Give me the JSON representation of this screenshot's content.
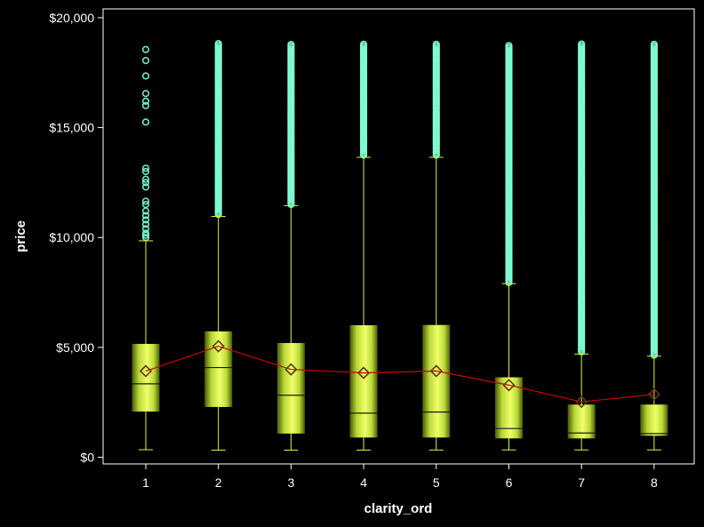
{
  "chart_data": {
    "type": "box",
    "title": "",
    "xlabel": "clarity_ord",
    "ylabel": "price",
    "categories": [
      "1",
      "2",
      "3",
      "4",
      "5",
      "6",
      "7",
      "8"
    ],
    "ylim": [
      -300,
      20400
    ],
    "y_ticks": [
      0,
      5000,
      10000,
      15000,
      20000
    ],
    "y_tick_labels": [
      "$0",
      "$5,000",
      "$10,000",
      "$15,000",
      "$20,000"
    ],
    "grid": false,
    "legend": "none",
    "colors": {
      "background": "#000000",
      "box_fill": "#d6f542",
      "whisker": "#d6f542",
      "outlier": "#7fffd4",
      "mean_line": "#cc0000",
      "mean_marker": "#5a3a1a",
      "axis": "#ffffff"
    },
    "boxes": [
      {
        "category": "1",
        "min": 345,
        "q1": 2080,
        "median": 3344,
        "q3": 5160,
        "max": 9850,
        "mean": 3924,
        "outliers": [
          10000,
          10100,
          10200,
          10400,
          10600,
          10800,
          11000,
          11200,
          11500,
          11650,
          12300,
          12500,
          12650,
          13000,
          13150,
          15250,
          16000,
          16200,
          16550,
          17350,
          18050,
          18550
        ]
      },
      {
        "category": "2",
        "min": 327,
        "q1": 2290,
        "median": 4085,
        "q3": 5730,
        "max": 10960,
        "mean": 5053,
        "outliers_range": [
          11050,
          18820
        ]
      },
      {
        "category": "3",
        "min": 327,
        "q1": 1080,
        "median": 2822,
        "q3": 5200,
        "max": 11450,
        "mean": 3997,
        "outliers_range": [
          11500,
          18820
        ]
      },
      {
        "category": "4",
        "min": 326,
        "q1": 900,
        "median": 2010,
        "q3": 6010,
        "max": 13650,
        "mean": 3839,
        "outliers_range": [
          13750,
          18820
        ]
      },
      {
        "category": "5",
        "min": 334,
        "q1": 900,
        "median": 2060,
        "q3": 6020,
        "max": 13650,
        "mean": 3925,
        "outliers_range": [
          13750,
          18820
        ]
      },
      {
        "category": "6",
        "min": 336,
        "q1": 860,
        "median": 1310,
        "q3": 3640,
        "max": 7900,
        "mean": 3284,
        "outliers_range": [
          7950,
          18750
        ]
      },
      {
        "category": "7",
        "min": 336,
        "q1": 860,
        "median": 1105,
        "q3": 2400,
        "max": 4700,
        "mean": 2523,
        "outliers_range": [
          4800,
          18800
        ]
      },
      {
        "category": "8",
        "min": 336,
        "q1": 980,
        "median": 1080,
        "q3": 2400,
        "max": 4600,
        "mean": 2864,
        "outliers_range": [
          4650,
          18800
        ]
      }
    ]
  }
}
